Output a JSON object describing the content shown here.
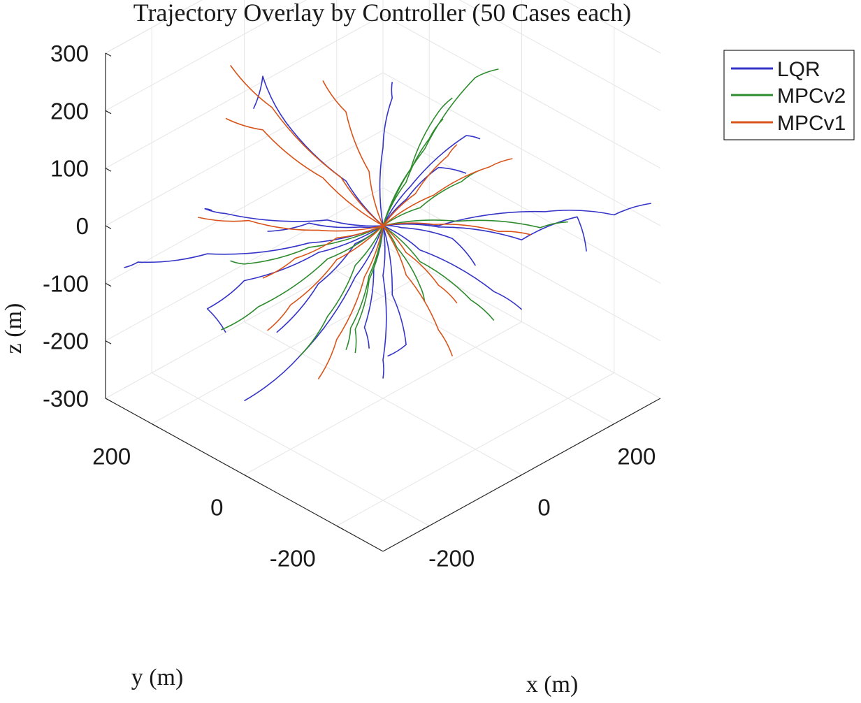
{
  "chart_data": {
    "type": "line",
    "title": "Trajectory Overlay by Controller (50 Cases each)",
    "xlabel": "x (m)",
    "ylabel": "y (m)",
    "zlabel": "z (m)",
    "xlim": [
      -300,
      300
    ],
    "ylim": [
      -300,
      300
    ],
    "zlim": [
      -300,
      300
    ],
    "x_ticks": [
      "-200",
      "0",
      "200"
    ],
    "y_ticks": [
      "-200",
      "0",
      "200"
    ],
    "z_ticks": [
      "-300",
      "-200",
      "-100",
      "0",
      "100",
      "200",
      "300"
    ],
    "grid": true,
    "legend_position": "top-right",
    "series": [
      {
        "name": "LQR",
        "color": "#3434c8",
        "trajectories": [
          [
            [
              0,
              0,
              0
            ],
            [
              -20,
              60,
              60
            ],
            [
              -60,
              150,
              140
            ],
            [
              -40,
              220,
              180
            ],
            [
              -80,
              200,
              150
            ]
          ],
          [
            [
              0,
              0,
              0
            ],
            [
              -80,
              80,
              -30
            ],
            [
              -200,
              180,
              -40
            ],
            [
              -280,
              250,
              -50
            ],
            [
              -300,
              260,
              -55
            ]
          ],
          [
            [
              0,
              0,
              0
            ],
            [
              -60,
              60,
              10
            ],
            [
              -180,
              160,
              30
            ],
            [
              -210,
              175,
              45
            ],
            [
              -200,
              170,
              40
            ]
          ],
          [
            [
              0,
              0,
              0
            ],
            [
              60,
              -60,
              0
            ],
            [
              180,
              -170,
              20
            ],
            [
              260,
              -240,
              10
            ],
            [
              300,
              -280,
              30
            ]
          ],
          [
            [
              0,
              0,
              0
            ],
            [
              40,
              -20,
              60
            ],
            [
              120,
              -60,
              130
            ],
            [
              140,
              -70,
              120
            ]
          ],
          [
            [
              0,
              0,
              0
            ],
            [
              20,
              40,
              -100
            ],
            [
              40,
              80,
              -230
            ],
            [
              60,
              90,
              -280
            ]
          ],
          [
            [
              0,
              0,
              0
            ],
            [
              -40,
              20,
              -80
            ],
            [
              -120,
              60,
              -200
            ],
            [
              -200,
              100,
              -260
            ]
          ],
          [
            [
              0,
              0,
              0
            ],
            [
              60,
              -20,
              -60
            ],
            [
              160,
              -80,
              -150
            ],
            [
              200,
              -100,
              -190
            ]
          ],
          [
            [
              0,
              0,
              0
            ],
            [
              -30,
              -30,
              -60
            ],
            [
              -60,
              -60,
              -180
            ],
            [
              -40,
              -40,
              -230
            ]
          ],
          [
            [
              0,
              0,
              0
            ],
            [
              40,
              40,
              100
            ],
            [
              80,
              60,
              160
            ],
            [
              100,
              80,
              170
            ]
          ],
          [
            [
              0,
              0,
              0
            ],
            [
              -100,
              40,
              -20
            ],
            [
              -190,
              110,
              -60
            ],
            [
              -240,
              140,
              -100
            ],
            [
              -210,
              130,
              -150
            ]
          ],
          [
            [
              0,
              0,
              0
            ],
            [
              80,
              -40,
              -20
            ],
            [
              190,
              -110,
              -60
            ],
            [
              250,
              -170,
              -20
            ],
            [
              260,
              -180,
              -80
            ]
          ],
          [
            [
              0,
              0,
              0
            ],
            [
              20,
              -30,
              50
            ],
            [
              50,
              -70,
              110
            ],
            [
              80,
              -100,
              100
            ]
          ],
          [
            [
              0,
              0,
              0
            ],
            [
              -20,
              40,
              -40
            ],
            [
              -60,
              80,
              -110
            ],
            [
              -110,
              120,
              -190
            ]
          ],
          [
            [
              0,
              0,
              0
            ],
            [
              10,
              -10,
              -120
            ],
            [
              40,
              -10,
              -220
            ],
            [
              20,
              10,
              -240
            ]
          ],
          [
            [
              0,
              0,
              0
            ],
            [
              -50,
              0,
              20
            ],
            [
              -120,
              40,
              40
            ],
            [
              -170,
              80,
              30
            ]
          ],
          [
            [
              0,
              0,
              0
            ],
            [
              50,
              10,
              -30
            ],
            [
              140,
              -10,
              -80
            ],
            [
              180,
              -20,
              -140
            ]
          ]
        ]
      },
      {
        "name": "MPCv2",
        "color": "#2e8b2e",
        "trajectories": [
          [
            [
              0,
              0,
              0
            ],
            [
              60,
              -30,
              120
            ],
            [
              120,
              -80,
              240
            ],
            [
              150,
              -100,
              250
            ]
          ],
          [
            [
              0,
              0,
              0
            ],
            [
              40,
              -20,
              90
            ],
            [
              80,
              -40,
              180
            ],
            [
              100,
              -50,
              200
            ]
          ],
          [
            [
              0,
              0,
              0
            ],
            [
              -80,
              40,
              -40
            ],
            [
              -170,
              100,
              -110
            ],
            [
              -210,
              140,
              -150
            ]
          ],
          [
            [
              0,
              0,
              0
            ],
            [
              0,
              30,
              -100
            ],
            [
              -10,
              60,
              -200
            ],
            [
              10,
              90,
              -260
            ]
          ],
          [
            [
              0,
              0,
              0
            ],
            [
              60,
              -20,
              -80
            ],
            [
              130,
              -60,
              -160
            ],
            [
              160,
              -80,
              -200
            ]
          ],
          [
            [
              0,
              0,
              0
            ],
            [
              100,
              -60,
              -10
            ],
            [
              200,
              -140,
              -30
            ],
            [
              230,
              -170,
              -20
            ]
          ],
          [
            [
              0,
              0,
              0
            ],
            [
              -100,
              60,
              -20
            ],
            [
              -180,
              120,
              -40
            ],
            [
              -200,
              130,
              -30
            ]
          ],
          [
            [
              0,
              0,
              0
            ],
            [
              20,
              -30,
              80
            ],
            [
              40,
              -60,
              160
            ],
            [
              60,
              -70,
              190
            ]
          ],
          [
            [
              0,
              0,
              0
            ],
            [
              -40,
              20,
              -60
            ],
            [
              -80,
              40,
              -140
            ],
            [
              -120,
              60,
              -200
            ]
          ],
          [
            [
              0,
              0,
              0
            ],
            [
              40,
              10,
              -60
            ],
            [
              80,
              0,
              -140
            ],
            [
              100,
              10,
              -180
            ]
          ],
          [
            [
              0,
              0,
              0
            ],
            [
              30,
              -50,
              40
            ],
            [
              70,
              -100,
              90
            ],
            [
              90,
              -120,
              110
            ]
          ],
          [
            [
              0,
              0,
              0
            ],
            [
              -20,
              10,
              -90
            ],
            [
              -30,
              30,
              -180
            ],
            [
              -20,
              40,
              -230
            ]
          ]
        ]
      },
      {
        "name": "MPCv1",
        "color": "#d9541a",
        "trajectories": [
          [
            [
              0,
              0,
              0
            ],
            [
              -30,
              60,
              70
            ],
            [
              -80,
              160,
              170
            ],
            [
              -110,
              220,
              230
            ]
          ],
          [
            [
              0,
              0,
              0
            ],
            [
              -50,
              80,
              70
            ],
            [
              -100,
              160,
              140
            ],
            [
              -140,
              200,
              160
            ]
          ],
          [
            [
              0,
              0,
              0
            ],
            [
              -90,
              50,
              10
            ],
            [
              -180,
              110,
              40
            ],
            [
              -240,
              160,
              50
            ]
          ],
          [
            [
              0,
              0,
              0
            ],
            [
              -60,
              40,
              -50
            ],
            [
              -120,
              80,
              -120
            ],
            [
              -150,
              100,
              -160
            ]
          ],
          [
            [
              0,
              0,
              0
            ],
            [
              -30,
              10,
              -80
            ],
            [
              -70,
              30,
              -180
            ],
            [
              -100,
              40,
              -240
            ]
          ],
          [
            [
              0,
              0,
              0
            ],
            [
              30,
              -20,
              -90
            ],
            [
              70,
              -50,
              -190
            ],
            [
              90,
              -60,
              -240
            ]
          ],
          [
            [
              0,
              0,
              0
            ],
            [
              70,
              -40,
              40
            ],
            [
              140,
              -90,
              80
            ],
            [
              170,
              -110,
              90
            ]
          ],
          [
            [
              0,
              0,
              0
            ],
            [
              80,
              -30,
              -20
            ],
            [
              170,
              -80,
              -50
            ],
            [
              210,
              -110,
              -60
            ]
          ],
          [
            [
              0,
              0,
              0
            ],
            [
              -10,
              20,
              90
            ],
            [
              -20,
              60,
              180
            ],
            [
              -40,
              90,
              230
            ]
          ],
          [
            [
              0,
              0,
              0
            ],
            [
              40,
              -10,
              -60
            ],
            [
              90,
              -30,
              -130
            ],
            [
              120,
              -40,
              -170
            ]
          ],
          [
            [
              0,
              0,
              0
            ],
            [
              30,
              -40,
              60
            ],
            [
              60,
              -80,
              130
            ],
            [
              70,
              -90,
              150
            ]
          ],
          [
            [
              0,
              0,
              0
            ],
            [
              -40,
              60,
              -30
            ],
            [
              -80,
              110,
              -70
            ],
            [
              -120,
              140,
              -100
            ]
          ]
        ]
      }
    ]
  }
}
